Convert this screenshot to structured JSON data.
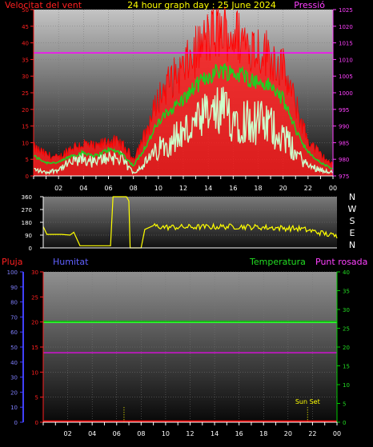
{
  "colors": {
    "wind": "#ff0000",
    "gust_fill": "#ff2020",
    "avg_wind": "#22cc22",
    "wind_low": "#ccffcc",
    "pressure": "#ff00ff",
    "direction": "#ffff00",
    "rain_axis": "#ff2020",
    "humidity_axis": "#4040ff",
    "temp_axis": "#00cc00",
    "dewpoint": "#ff00ff",
    "text_yellow": "#ffff00",
    "grid": "#777777"
  },
  "chart_data": [
    {
      "type": "line",
      "name": "wind-pressure",
      "title": "24 hour graph day : 25 June 2024",
      "left_label": "Velocitat del vent",
      "right_label": "Pressió",
      "y_left": {
        "range": [
          0,
          50
        ],
        "ticks": [
          0,
          5,
          10,
          15,
          20,
          25,
          30,
          35,
          40,
          45,
          50
        ]
      },
      "y_right": {
        "range": [
          975,
          1025
        ],
        "ticks": [
          975,
          980,
          985,
          990,
          995,
          1000,
          1005,
          1010,
          1015,
          1020,
          1025
        ]
      },
      "x_ticks": [
        "02",
        "04",
        "06",
        "08",
        "10",
        "12",
        "14",
        "16",
        "18",
        "20",
        "22",
        "00"
      ],
      "x_hours": [
        2,
        4,
        6,
        8,
        10,
        12,
        14,
        16,
        18,
        20,
        22,
        24
      ],
      "pressure_value": 1012,
      "gust_profile": {
        "hours": [
          0,
          1,
          2,
          3,
          4,
          5,
          6,
          7,
          8,
          9,
          10,
          11,
          12,
          13,
          14,
          15,
          16,
          17,
          18,
          19,
          20,
          21,
          22,
          23,
          24
        ],
        "values": [
          8,
          6,
          5,
          8,
          9,
          8,
          10,
          9,
          5,
          12,
          22,
          27,
          30,
          35,
          39,
          41,
          40,
          38,
          36,
          34,
          30,
          20,
          10,
          6,
          3
        ]
      },
      "avg_profile": {
        "hours": [
          0,
          1,
          2,
          3,
          4,
          5,
          6,
          7,
          8,
          9,
          10,
          11,
          12,
          13,
          14,
          15,
          16,
          17,
          18,
          19,
          20,
          21,
          22,
          23,
          24
        ],
        "values": [
          6,
          4,
          4,
          6,
          7,
          6,
          8,
          7,
          3,
          9,
          16,
          20,
          23,
          27,
          30,
          32,
          31,
          30,
          28,
          27,
          23,
          14,
          7,
          4,
          2
        ]
      },
      "low_profile": {
        "hours": [
          0,
          1,
          2,
          3,
          4,
          5,
          6,
          7,
          8,
          9,
          10,
          11,
          12,
          13,
          14,
          15,
          16,
          17,
          18,
          19,
          20,
          21,
          22,
          23,
          24
        ],
        "values": [
          2,
          1,
          2,
          4,
          5,
          4,
          6,
          5,
          1,
          4,
          8,
          11,
          13,
          15,
          18,
          19,
          18,
          17,
          16,
          15,
          12,
          7,
          3,
          2,
          1
        ]
      }
    },
    {
      "type": "line",
      "name": "wind-direction",
      "y_range": [
        0,
        360
      ],
      "y_ticks": [
        0,
        90,
        180,
        270,
        360
      ],
      "y_tick_labels": [
        "0",
        "90",
        "180",
        "270",
        "360"
      ],
      "compass": [
        "N",
        "W",
        "S",
        "E",
        "N"
      ],
      "points": {
        "hours": [
          0,
          0.3,
          1.5,
          2.2,
          2.5,
          3.0,
          5.5,
          5.7,
          6.8,
          7.0,
          7.1,
          8.0,
          8.3,
          9.0,
          24
        ],
        "values": [
          150,
          95,
          95,
          90,
          110,
          15,
          15,
          360,
          360,
          330,
          0,
          0,
          130,
          155,
          70
        ]
      }
    },
    {
      "type": "line",
      "name": "temperature-humidity-rain",
      "label_rain": "Pluja",
      "label_humidity": "Humitat",
      "label_temperature": "Temperatura",
      "label_dewpoint": "Punt rosada",
      "y_humidity": {
        "range": [
          0,
          100
        ],
        "ticks": [
          0,
          10,
          20,
          30,
          40,
          50,
          60,
          70,
          80,
          90,
          100
        ]
      },
      "y_rain": {
        "range": [
          0,
          30
        ],
        "ticks": [
          0,
          5,
          10,
          15,
          20,
          25,
          30
        ]
      },
      "y_temperature": {
        "range": [
          0,
          40
        ],
        "ticks": [
          0,
          5,
          10,
          15,
          20,
          25,
          30,
          35,
          40
        ]
      },
      "x_ticks": [
        "02",
        "04",
        "06",
        "08",
        "10",
        "12",
        "14",
        "16",
        "18",
        "20",
        "22",
        "00"
      ],
      "x_hours": [
        2,
        4,
        6,
        8,
        10,
        12,
        14,
        16,
        18,
        20,
        22,
        24
      ],
      "temperature_value": 26.5,
      "humidity_value": 67,
      "dewpoint_value": 18.5,
      "rain_value": 0,
      "sunrise_hour": 6.6,
      "sunset_hour": 21.6,
      "sunset_label": "Sun Set"
    }
  ]
}
